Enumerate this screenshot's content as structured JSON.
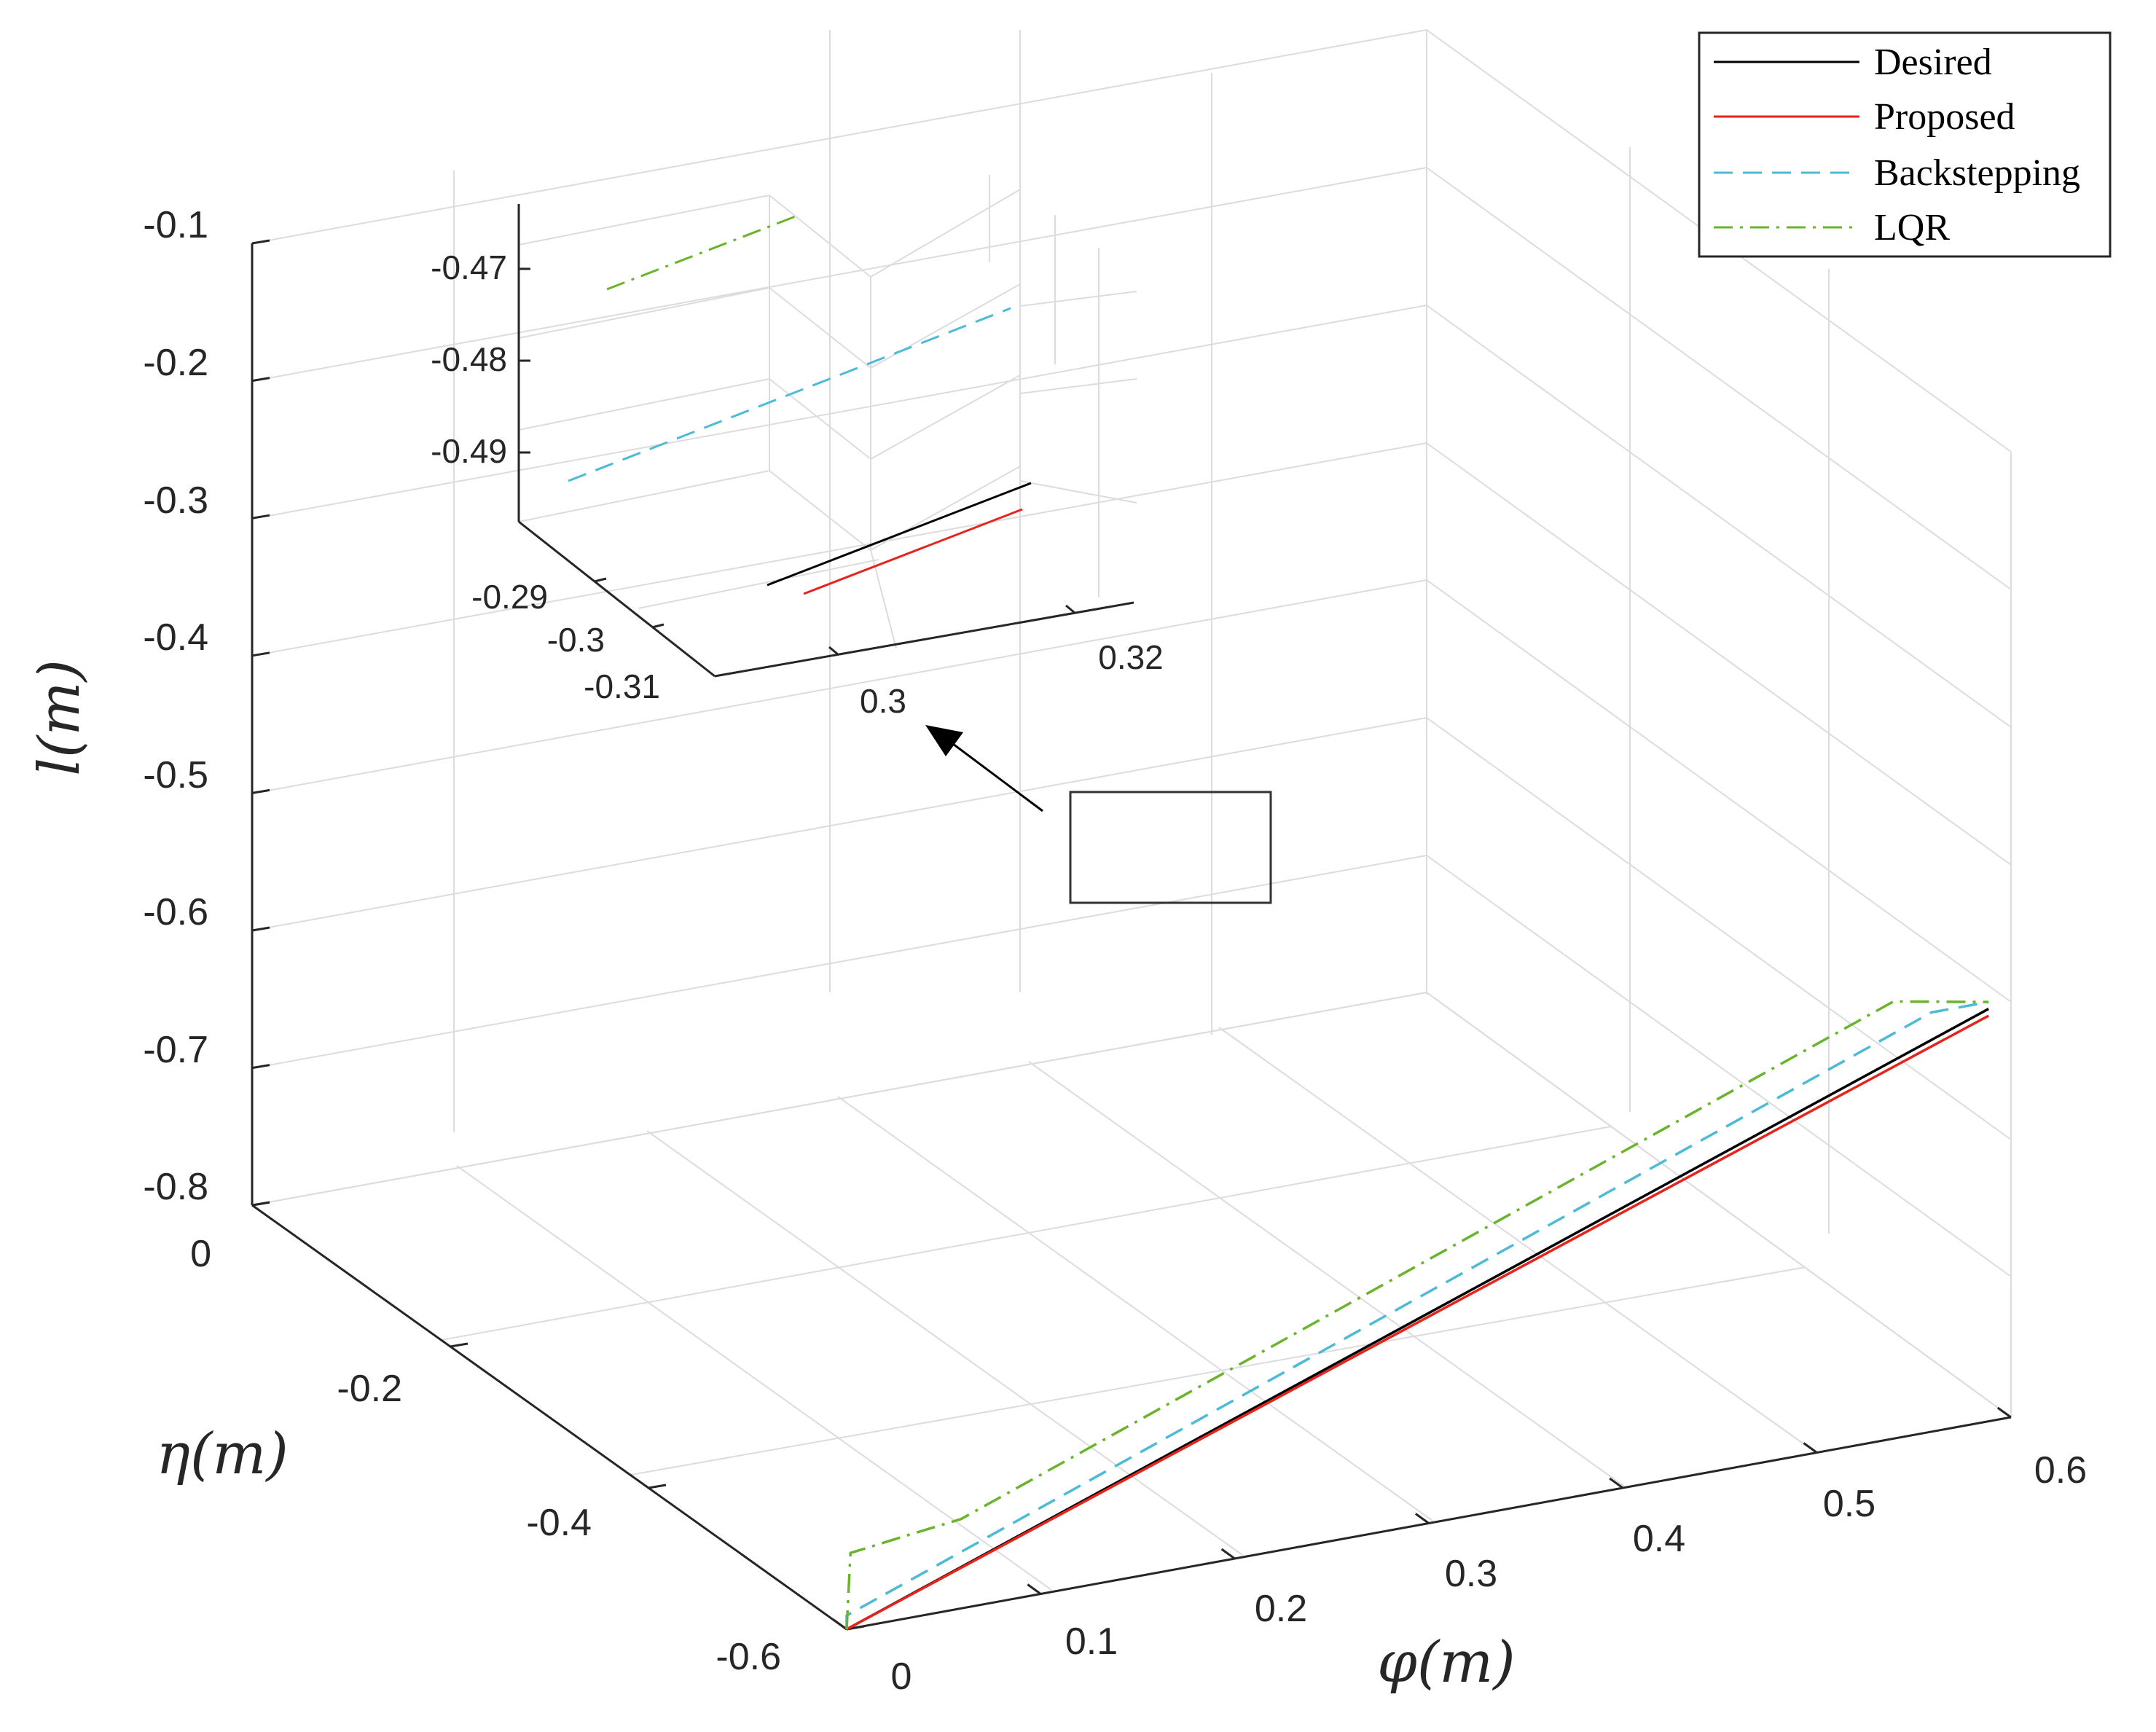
{
  "chart_data": {
    "type": "line3d",
    "title": "",
    "xlabel": "φ(m)",
    "ylabel": "η(m)",
    "zlabel": "l(m)",
    "xlim": [
      0,
      0.6
    ],
    "ylim": [
      -0.6,
      0
    ],
    "zlim": [
      -0.8,
      -0.1
    ],
    "x_ticks": [
      "0",
      "0.1",
      "0.2",
      "0.3",
      "0.4",
      "0.5",
      "0.6"
    ],
    "y_ticks": [
      "0",
      "-0.2",
      "-0.4",
      "-0.6"
    ],
    "z_ticks": [
      "-0.1",
      "-0.2",
      "-0.3",
      "-0.4",
      "-0.5",
      "-0.6",
      "-0.7",
      "-0.8"
    ],
    "grid": true,
    "legend_position": "top-right",
    "series": [
      {
        "name": "Desired",
        "color": "#000000",
        "dash": "solid",
        "points": [
          [
            0.0,
            -0.6,
            -0.8
          ],
          [
            0.6,
            -0.6,
            -0.5
          ]
        ]
      },
      {
        "name": "Proposed",
        "color": "#e8231c",
        "dash": "solid",
        "points": [
          [
            0.0,
            -0.6,
            -0.8
          ],
          [
            0.6,
            -0.6,
            -0.505
          ]
        ]
      },
      {
        "name": "Backstepping",
        "color": "#4dbbd5",
        "dash": "dashed",
        "points": [
          [
            0.0,
            -0.6,
            -0.8
          ],
          [
            0.0,
            -0.6,
            -0.79
          ],
          [
            0.57,
            -0.6,
            -0.495
          ],
          [
            0.6,
            -0.6,
            -0.495
          ]
        ]
      },
      {
        "name": "LQR",
        "color": "#6ab42d",
        "dash": "dashdot",
        "points": [
          [
            0.0,
            -0.6,
            -0.8
          ],
          [
            0.002,
            -0.6,
            -0.745
          ],
          [
            0.03,
            -0.6,
            -0.74
          ],
          [
            0.06,
            -0.6,
            -0.735
          ],
          [
            0.55,
            -0.6,
            -0.482
          ],
          [
            0.6,
            -0.6,
            -0.495
          ]
        ]
      }
    ],
    "inset": {
      "x_ticks": [
        "0.3",
        "0.32"
      ],
      "y_ticks": [
        "-0.29",
        "-0.3",
        "-0.31"
      ],
      "z_ticks": [
        "-0.47",
        "-0.48",
        "-0.49"
      ]
    }
  }
}
